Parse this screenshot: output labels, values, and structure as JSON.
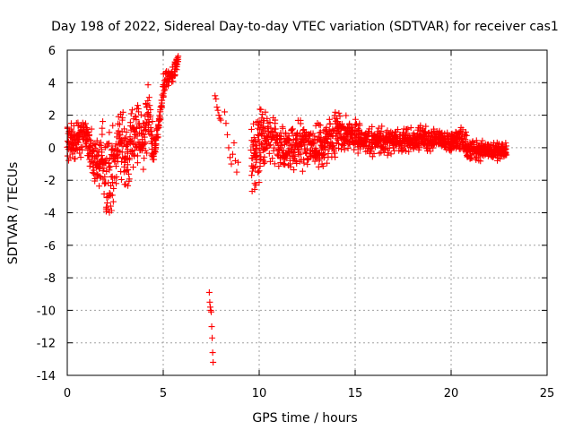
{
  "chart_data": {
    "type": "scatter",
    "title": "Day 198 of 2022, Sidereal Day-to-day VTEC variation (SDTVAR) for receiver cas1",
    "xlabel": "GPS time / hours",
    "ylabel": "SDTVAR / TECUs",
    "xlim": [
      0,
      25
    ],
    "ylim": [
      -14,
      6
    ],
    "xticks": [
      "0",
      "5",
      "10",
      "15",
      "20",
      "25"
    ],
    "yticks": [
      "-14",
      "-12",
      "-10",
      "-8",
      "-6",
      "-4",
      "-2",
      "0",
      "2",
      "4",
      "6"
    ],
    "grid": true,
    "marker": "+",
    "color": "#ff0000",
    "series": [
      {
        "name": "SDTVAR",
        "envelope": [
          {
            "x": 0.0,
            "min": -1.0,
            "max": 1.8
          },
          {
            "x": 0.3,
            "min": -1.2,
            "max": 1.5
          },
          {
            "x": 0.6,
            "min": -0.5,
            "max": 2.2
          },
          {
            "x": 0.9,
            "min": -0.3,
            "max": 2.5
          },
          {
            "x": 1.2,
            "min": -2.0,
            "max": 1.3
          },
          {
            "x": 1.5,
            "min": -3.0,
            "max": 0.5
          },
          {
            "x": 1.8,
            "min": -2.5,
            "max": 1.8
          },
          {
            "x": 2.1,
            "min": -5.0,
            "max": 1.5
          },
          {
            "x": 2.4,
            "min": -4.5,
            "max": 2.5
          },
          {
            "x": 2.7,
            "min": -2.0,
            "max": 3.2
          },
          {
            "x": 3.0,
            "min": -2.8,
            "max": 2.0
          },
          {
            "x": 3.3,
            "min": -2.5,
            "max": 2.4
          },
          {
            "x": 3.6,
            "min": -1.0,
            "max": 3.5
          },
          {
            "x": 3.9,
            "min": -1.8,
            "max": 2.5
          },
          {
            "x": 4.2,
            "min": -0.5,
            "max": 4.5
          },
          {
            "x": 4.5,
            "min": -1.5,
            "max": 0.5
          },
          {
            "x": 4.8,
            "min": 1.3,
            "max": 2.1
          },
          {
            "x": 5.1,
            "min": 3.2,
            "max": 5.4
          },
          {
            "x": 5.5,
            "min": 3.8,
            "max": 5.0
          },
          {
            "x": 5.8,
            "min": 5.1,
            "max": 5.9
          }
        ],
        "segments": [
          {
            "x_start": 7.4,
            "x_end": 7.6,
            "values": [
              -8.9,
              -9.5,
              -9.8,
              -10.0,
              -10.1,
              -11.0,
              -11.7,
              -12.6,
              -13.2
            ]
          },
          {
            "x_start": 7.7,
            "x_end": 8.0,
            "values": [
              3.2,
              3.0,
              2.5,
              2.3,
              2.0,
              1.8,
              1.7
            ]
          },
          {
            "x_start": 8.2,
            "x_end": 8.9,
            "values": [
              2.2,
              1.5,
              0.8,
              0.0,
              -0.6,
              -1.0,
              -0.4,
              0.3,
              -0.8,
              -1.5,
              -0.9
            ]
          }
        ],
        "dense_bands": [
          {
            "x": 9.6,
            "min": -3.5,
            "max": 2.2
          },
          {
            "x": 10.0,
            "min": -3.0,
            "max": 2.8
          },
          {
            "x": 10.4,
            "min": -1.0,
            "max": 2.5
          },
          {
            "x": 11.0,
            "min": -1.5,
            "max": 2.0
          },
          {
            "x": 11.5,
            "min": -2.0,
            "max": 1.5
          },
          {
            "x": 12.0,
            "min": -1.8,
            "max": 1.8
          },
          {
            "x": 12.5,
            "min": -1.5,
            "max": 2.0
          },
          {
            "x": 13.0,
            "min": -1.5,
            "max": 1.5
          },
          {
            "x": 13.5,
            "min": -1.2,
            "max": 1.9
          },
          {
            "x": 14.0,
            "min": -1.0,
            "max": 2.8
          },
          {
            "x": 14.5,
            "min": -0.6,
            "max": 2.2
          },
          {
            "x": 15.0,
            "min": -0.4,
            "max": 1.9
          },
          {
            "x": 15.5,
            "min": -0.5,
            "max": 1.6
          },
          {
            "x": 16.0,
            "min": -0.6,
            "max": 1.3
          },
          {
            "x": 16.5,
            "min": -0.6,
            "max": 1.4
          },
          {
            "x": 17.0,
            "min": -0.5,
            "max": 1.2
          },
          {
            "x": 17.5,
            "min": -0.5,
            "max": 1.5
          },
          {
            "x": 18.0,
            "min": -0.4,
            "max": 1.2
          },
          {
            "x": 18.5,
            "min": -0.3,
            "max": 1.6
          },
          {
            "x": 19.0,
            "min": -0.3,
            "max": 1.3
          },
          {
            "x": 19.5,
            "min": -0.2,
            "max": 1.1
          },
          {
            "x": 20.0,
            "min": -0.4,
            "max": 1.0
          },
          {
            "x": 20.5,
            "min": -0.6,
            "max": 1.8
          },
          {
            "x": 21.0,
            "min": -0.9,
            "max": 0.6
          },
          {
            "x": 21.5,
            "min": -0.8,
            "max": 0.5
          },
          {
            "x": 22.0,
            "min": -0.8,
            "max": 0.6
          },
          {
            "x": 22.5,
            "min": -0.9,
            "max": 0.4
          },
          {
            "x": 22.9,
            "min": -0.7,
            "max": 0.3
          }
        ]
      }
    ]
  }
}
